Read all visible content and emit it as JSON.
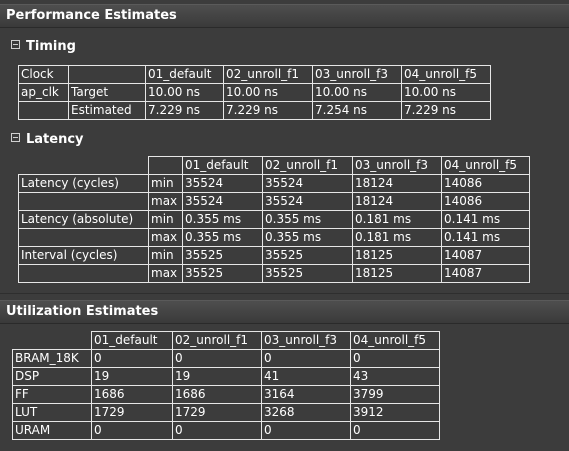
{
  "performance": {
    "header": "Performance Estimates",
    "timing": {
      "title": "Timing",
      "columns": [
        "Clock",
        "",
        "01_default",
        "02_unroll_f1",
        "03_unroll_f3",
        "04_unroll_f5"
      ],
      "rows": [
        [
          "ap_clk",
          "Target",
          "10.00 ns",
          "10.00 ns",
          "10.00 ns",
          "10.00 ns"
        ],
        [
          "",
          "Estimated",
          "7.229 ns",
          "7.229 ns",
          "7.254 ns",
          "7.229 ns"
        ]
      ]
    },
    "latency": {
      "title": "Latency",
      "columns": [
        "",
        "",
        "01_default",
        "02_unroll_f1",
        "03_unroll_f3",
        "04_unroll_f5"
      ],
      "rows": [
        [
          "Latency (cycles)",
          "min",
          "35524",
          "35524",
          "18124",
          "14086"
        ],
        [
          "",
          "max",
          "35524",
          "35524",
          "18124",
          "14086"
        ],
        [
          "Latency (absolute)",
          "min",
          "0.355 ms",
          "0.355 ms",
          "0.181 ms",
          "0.141 ms"
        ],
        [
          "",
          "max",
          "0.355 ms",
          "0.355 ms",
          "0.181 ms",
          "0.141 ms"
        ],
        [
          "Interval (cycles)",
          "min",
          "35525",
          "35525",
          "18125",
          "14087"
        ],
        [
          "",
          "max",
          "35525",
          "35525",
          "18125",
          "14087"
        ]
      ]
    }
  },
  "utilization": {
    "header": "Utilization Estimates",
    "columns": [
      "",
      "01_default",
      "02_unroll_f1",
      "03_unroll_f3",
      "04_unroll_f5"
    ],
    "rows": [
      [
        "BRAM_18K",
        "0",
        "0",
        "0",
        "0"
      ],
      [
        "DSP",
        "19",
        "19",
        "41",
        "43"
      ],
      [
        "FF",
        "1686",
        "1686",
        "3164",
        "3799"
      ],
      [
        "LUT",
        "1729",
        "1729",
        "3268",
        "3912"
      ],
      [
        "URAM",
        "0",
        "0",
        "0",
        "0"
      ]
    ]
  }
}
